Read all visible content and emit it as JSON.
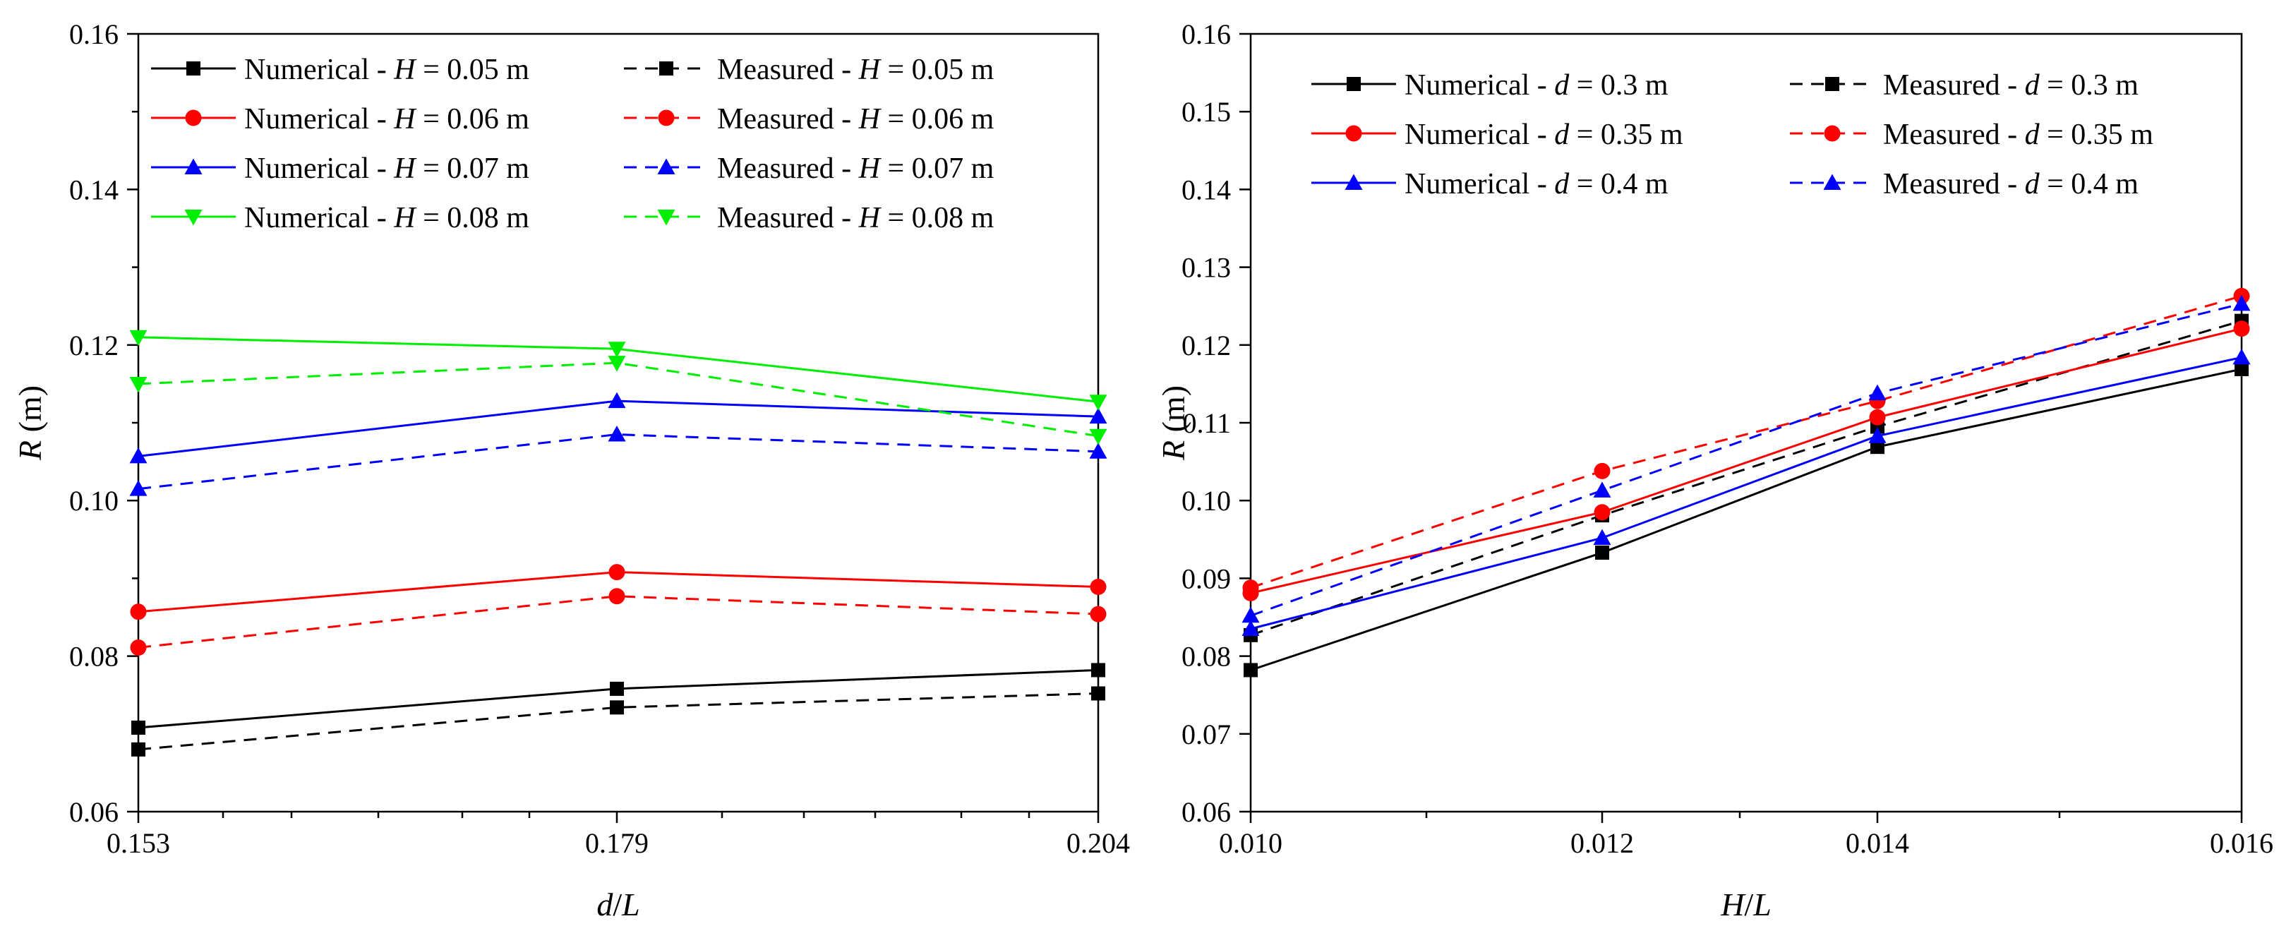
{
  "chart_data": [
    {
      "type": "line",
      "xlabel": "d/L",
      "ylabel": "R (m)",
      "x": [
        0.153,
        0.179,
        0.204
      ],
      "x_tick_labels": [
        "0.153",
        "0.179",
        "0.204"
      ],
      "ylim": [
        0.06,
        0.16
      ],
      "y_ticks": [
        0.06,
        0.08,
        0.1,
        0.12,
        0.14,
        0.16
      ],
      "y_tick_labels": [
        "0.06",
        "0.08",
        "0.10",
        "0.12",
        "0.14",
        "0.16"
      ],
      "grid": false,
      "legend_position": "top",
      "series": [
        {
          "name": "Numerical - H = 0.05 m",
          "label_prefix": "Numerical - ",
          "var": "H",
          "label_suffix": " = 0.05 m",
          "color": "#000000",
          "dash": "solid",
          "marker": "square",
          "values": [
            0.0708,
            0.0758,
            0.0782
          ]
        },
        {
          "name": "Measured - H = 0.05 m",
          "label_prefix": "Measured - ",
          "var": "H",
          "label_suffix": " = 0.05 m",
          "color": "#000000",
          "dash": "dashed",
          "marker": "square",
          "values": [
            0.068,
            0.0734,
            0.0752
          ]
        },
        {
          "name": "Numerical - H = 0.06 m",
          "label_prefix": "Numerical - ",
          "var": "H",
          "label_suffix": " = 0.06 m",
          "color": "#ff0000",
          "dash": "solid",
          "marker": "circle",
          "values": [
            0.0857,
            0.0908,
            0.0889
          ]
        },
        {
          "name": "Measured - H = 0.06 m",
          "label_prefix": "Measured - ",
          "var": "H",
          "label_suffix": " = 0.06 m",
          "color": "#ff0000",
          "dash": "dashed",
          "marker": "circle",
          "values": [
            0.0811,
            0.0877,
            0.0854
          ]
        },
        {
          "name": "Numerical - H = 0.07 m",
          "label_prefix": "Numerical - ",
          "var": "H",
          "label_suffix": " = 0.07 m",
          "color": "#0000ff",
          "dash": "solid",
          "marker": "triangle-up",
          "values": [
            0.1057,
            0.1128,
            0.1108
          ]
        },
        {
          "name": "Measured - H = 0.07 m",
          "label_prefix": "Measured - ",
          "var": "H",
          "label_suffix": " = 0.07 m",
          "color": "#0000ff",
          "dash": "dashed",
          "marker": "triangle-up",
          "values": [
            0.1015,
            0.1085,
            0.1063
          ]
        },
        {
          "name": "Numerical - H = 0.08 m",
          "label_prefix": "Numerical - ",
          "var": "H",
          "label_suffix": " = 0.08 m",
          "color": "#00ee00",
          "dash": "solid",
          "marker": "triangle-down",
          "values": [
            0.121,
            0.1195,
            0.1127
          ]
        },
        {
          "name": "Measured - H = 0.08 m",
          "label_prefix": "Measured - ",
          "var": "H",
          "label_suffix": " = 0.08 m",
          "color": "#00ee00",
          "dash": "dashed",
          "marker": "triangle-down",
          "values": [
            0.115,
            0.1177,
            0.1083
          ]
        }
      ]
    },
    {
      "type": "line",
      "xlabel": "H/L",
      "ylabel": "R (m)",
      "x": [
        0.01,
        0.012,
        0.014,
        0.016
      ],
      "x_tick_labels": [
        "0.010",
        "0.012",
        "0.014",
        "0.016"
      ],
      "ylim": [
        0.06,
        0.16
      ],
      "y_ticks": [
        0.06,
        0.07,
        0.08,
        0.09,
        0.1,
        0.11,
        0.12,
        0.13,
        0.14,
        0.15,
        0.16
      ],
      "y_tick_labels": [
        "0.06",
        "0.07",
        "0.08",
        "0.09",
        "0.10",
        "0.11",
        "0.12",
        "0.13",
        "0.14",
        "0.15",
        "0.16"
      ],
      "grid": false,
      "legend_position": "top",
      "series": [
        {
          "name": "Numerical - d = 0.3 m",
          "label_prefix": "Numerical - ",
          "var": "d",
          "label_suffix": " = 0.3 m",
          "color": "#000000",
          "dash": "solid",
          "marker": "square",
          "values": [
            0.0782,
            0.0933,
            0.1069,
            0.1169
          ]
        },
        {
          "name": "Measured - d = 0.3 m",
          "label_prefix": "Measured - ",
          "var": "d",
          "label_suffix": " = 0.3 m",
          "color": "#000000",
          "dash": "dashed",
          "marker": "square",
          "values": [
            0.0827,
            0.0981,
            0.1095,
            0.1231
          ]
        },
        {
          "name": "Numerical - d = 0.35 m",
          "label_prefix": "Numerical - ",
          "var": "d",
          "label_suffix": " = 0.35 m",
          "color": "#ff0000",
          "dash": "solid",
          "marker": "circle",
          "values": [
            0.0881,
            0.0985,
            0.1107,
            0.1221
          ]
        },
        {
          "name": "Measured - d = 0.35 m",
          "label_prefix": "Measured - ",
          "var": "d",
          "label_suffix": " = 0.35 m",
          "color": "#ff0000",
          "dash": "dashed",
          "marker": "circle",
          "values": [
            0.0888,
            0.1038,
            0.1128,
            0.1263
          ]
        },
        {
          "name": "Numerical - d = 0.4 m",
          "label_prefix": "Numerical - ",
          "var": "d",
          "label_suffix": " = 0.4 m",
          "color": "#0000ff",
          "dash": "solid",
          "marker": "triangle-up",
          "values": [
            0.0835,
            0.0952,
            0.1083,
            0.1184
          ]
        },
        {
          "name": "Measured - d = 0.4 m",
          "label_prefix": "Measured - ",
          "var": "d",
          "label_suffix": " = 0.4 m",
          "color": "#0000ff",
          "dash": "dashed",
          "marker": "triangle-up",
          "values": [
            0.0852,
            0.1013,
            0.1138,
            0.1253
          ]
        }
      ]
    }
  ]
}
